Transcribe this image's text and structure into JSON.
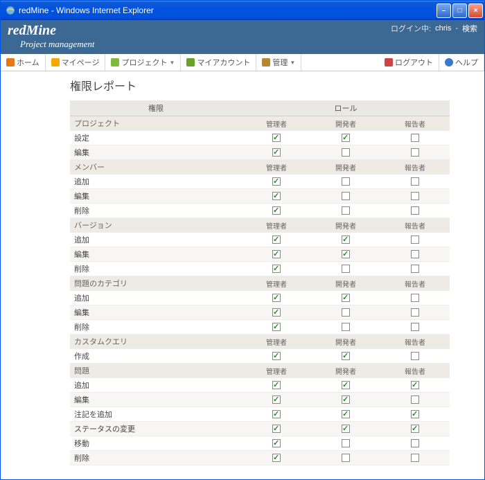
{
  "window": {
    "title": "redMine - Windows Internet Explorer"
  },
  "header": {
    "brand": "redMine",
    "tagline": "Project management",
    "login_prefix": "ログイン中:",
    "user": "chris",
    "search": "検索"
  },
  "menu": {
    "home": "ホーム",
    "mypage": "マイページ",
    "projects": "プロジェクト",
    "myaccount": "マイアカウント",
    "admin": "管理",
    "logout": "ログアウト",
    "help": "ヘルプ"
  },
  "page": {
    "title": "権限レポート",
    "col_permission": "権限",
    "col_role": "ロール",
    "roles": {
      "manager": "管理者",
      "developer": "開発者",
      "reporter": "報告者"
    }
  },
  "sections": [
    {
      "name": "プロジェクト",
      "rows": [
        {
          "label": "設定",
          "cb": [
            true,
            true,
            false
          ]
        },
        {
          "label": "編集",
          "cb": [
            true,
            false,
            false
          ]
        }
      ]
    },
    {
      "name": "メンバー",
      "rows": [
        {
          "label": "追加",
          "cb": [
            true,
            false,
            false
          ]
        },
        {
          "label": "編集",
          "cb": [
            true,
            false,
            false
          ]
        },
        {
          "label": "削除",
          "cb": [
            true,
            false,
            false
          ]
        }
      ]
    },
    {
      "name": "バージョン",
      "rows": [
        {
          "label": "追加",
          "cb": [
            true,
            true,
            false
          ]
        },
        {
          "label": "編集",
          "cb": [
            true,
            true,
            false
          ]
        },
        {
          "label": "削除",
          "cb": [
            true,
            false,
            false
          ]
        }
      ]
    },
    {
      "name": "問題のカテゴリ",
      "rows": [
        {
          "label": "追加",
          "cb": [
            true,
            true,
            false
          ]
        },
        {
          "label": "編集",
          "cb": [
            true,
            false,
            false
          ]
        },
        {
          "label": "削除",
          "cb": [
            true,
            false,
            false
          ]
        }
      ]
    },
    {
      "name": "カスタムクエリ",
      "rows": [
        {
          "label": "作成",
          "cb": [
            true,
            true,
            false
          ]
        }
      ]
    },
    {
      "name": "問題",
      "rows": [
        {
          "label": "追加",
          "cb": [
            true,
            true,
            true
          ]
        },
        {
          "label": "編集",
          "cb": [
            true,
            true,
            false
          ]
        },
        {
          "label": "注記を追加",
          "cb": [
            true,
            true,
            true
          ]
        },
        {
          "label": "ステータスの変更",
          "cb": [
            true,
            true,
            true
          ]
        },
        {
          "label": "移動",
          "cb": [
            true,
            false,
            false
          ]
        },
        {
          "label": "削除",
          "cb": [
            true,
            false,
            false
          ]
        }
      ]
    }
  ],
  "colors": {
    "header_bg": "#3c6894",
    "section_bg": "#eeeae4",
    "icon_home": "#e77817",
    "icon_mypage": "#f2a900",
    "icon_projects": "#7eba3c",
    "icon_myaccount": "#6aa12d",
    "icon_admin": "#b58836",
    "icon_logout": "#c44",
    "icon_help": "#3b78c9"
  }
}
